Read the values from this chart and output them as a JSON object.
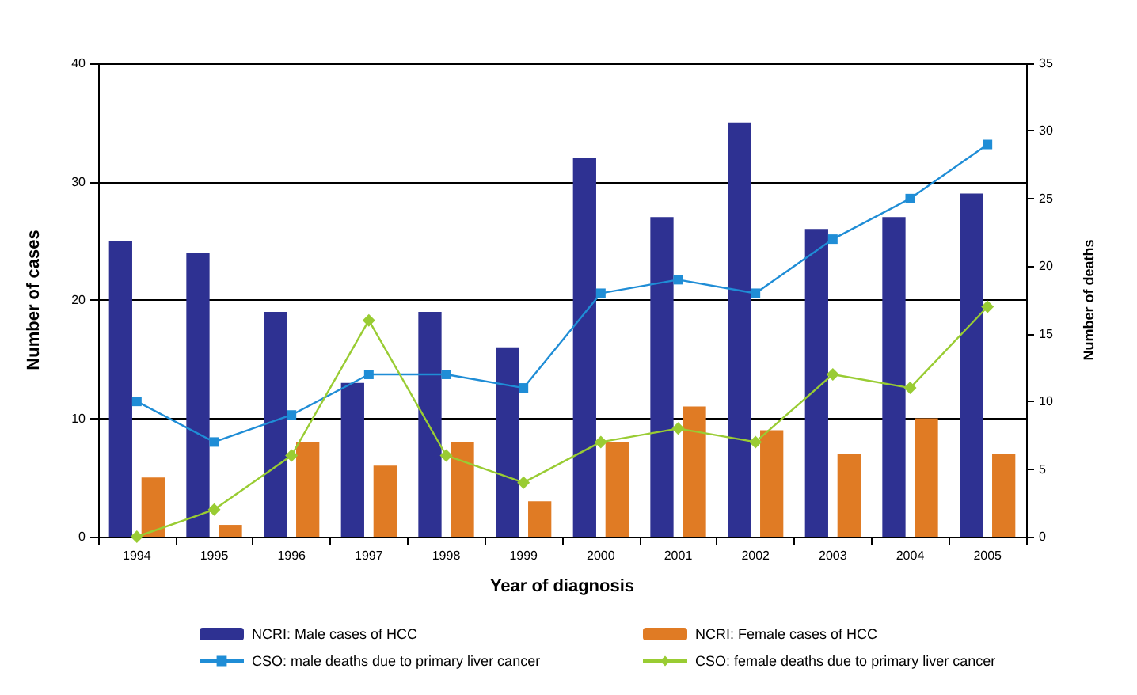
{
  "chart_data": {
    "type": "bar",
    "xlabel": "Year of diagnosis",
    "ylabel": "Number of cases",
    "y2label": "Number of deaths",
    "categories": [
      "1994",
      "1995",
      "1996",
      "1997",
      "1998",
      "1999",
      "2000",
      "2001",
      "2002",
      "2003",
      "2004",
      "2005"
    ],
    "series": [
      {
        "name": "NCRI: Male cases of HCC",
        "color": "#2e3192",
        "values": [
          25,
          24,
          19,
          13,
          19,
          16,
          32,
          27,
          35,
          26,
          27,
          29
        ]
      },
      {
        "name": "NCRI: Female cases of HCC",
        "color": "#e07b24",
        "values": [
          5,
          1,
          8,
          6,
          8,
          3,
          8,
          11,
          9,
          7,
          10,
          7
        ]
      },
      {
        "name": "CSO: male deaths due to primary liver cancer",
        "type": "line",
        "axis": "y2",
        "marker": "square",
        "color": "#1f8dd6",
        "values": [
          10,
          7,
          9,
          12,
          12,
          11,
          18,
          19,
          18,
          22,
          25,
          29
        ]
      },
      {
        "name": "CSO: female deaths due to primary liver cancer",
        "type": "line",
        "axis": "y2",
        "marker": "diamond",
        "color": "#99cc33",
        "values": [
          0,
          2,
          6,
          16,
          6,
          4,
          7,
          8,
          7,
          12,
          11,
          17
        ]
      }
    ],
    "ylim": [
      0,
      40
    ],
    "yticks": [
      0,
      10,
      20,
      30,
      40
    ],
    "y2lim": [
      0,
      35
    ],
    "y2ticks": [
      0,
      5,
      10,
      15,
      20,
      25,
      30,
      35
    ],
    "grid": "y",
    "legend": "bottom"
  }
}
